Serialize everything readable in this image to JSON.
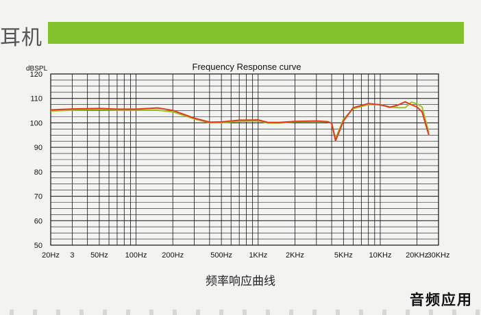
{
  "header": {
    "title": "耳机",
    "bar_color": "#82c22a"
  },
  "caption": "频率响应曲线",
  "brand_label": "音频应用",
  "chart_data": {
    "type": "line",
    "title": "Frequency Response curve",
    "ylabel": "dBSPL",
    "xlabel": "",
    "x_scale": "log",
    "xlim": [
      20,
      30000
    ],
    "ylim": [
      50,
      120
    ],
    "grid": true,
    "y_ticks": [
      {
        "value": 120,
        "label": "120"
      },
      {
        "value": 110,
        "label": "110"
      },
      {
        "value": 100,
        "label": "100"
      },
      {
        "value": 90,
        "label": "90"
      },
      {
        "value": 80,
        "label": "80"
      },
      {
        "value": 70,
        "label": "70"
      },
      {
        "value": 60,
        "label": "60"
      },
      {
        "value": 50,
        "label": "50"
      }
    ],
    "x_ticks": [
      {
        "value": 20,
        "label": "20Hz"
      },
      {
        "value": 30,
        "label": "3"
      },
      {
        "value": 50,
        "label": "50Hz"
      },
      {
        "value": 100,
        "label": "100Hz"
      },
      {
        "value": 200,
        "label": "200Hz"
      },
      {
        "value": 500,
        "label": "500Hz"
      },
      {
        "value": 1000,
        "label": "1KHz"
      },
      {
        "value": 2000,
        "label": "2KHz"
      },
      {
        "value": 5000,
        "label": "5KHz"
      },
      {
        "value": 10000,
        "label": "10KHz"
      },
      {
        "value": 20000,
        "label": "20KHz"
      },
      {
        "value": 30000,
        "label": "30KHz"
      }
    ],
    "series": [
      {
        "color": "#9cc424",
        "x": [
          20,
          30,
          50,
          70,
          100,
          150,
          200,
          300,
          400,
          500,
          700,
          1000,
          1200,
          1500,
          2000,
          3000,
          3700,
          4000,
          4300,
          5000,
          6000,
          8000,
          10000,
          12000,
          14000,
          16000,
          18000,
          20000,
          22000,
          25000
        ],
        "y": [
          104.8,
          105.2,
          105.4,
          105.2,
          105.2,
          105.2,
          104.5,
          101.6,
          100,
          100,
          100.6,
          100.8,
          99.9,
          99.9,
          100.4,
          100.6,
          100.4,
          99.8,
          93.5,
          101.5,
          105.8,
          107.5,
          107.5,
          106.5,
          106.2,
          106.2,
          108.5,
          107.8,
          106.5,
          96
        ]
      },
      {
        "color": "#e2381f",
        "x": [
          20,
          30,
          50,
          70,
          100,
          150,
          200,
          300,
          400,
          500,
          700,
          1000,
          1200,
          1500,
          2000,
          3000,
          3700,
          4000,
          4300,
          5000,
          6000,
          8000,
          10000,
          12000,
          14000,
          16000,
          18000,
          20000,
          22000,
          25000
        ],
        "y": [
          105.3,
          105.7,
          105.9,
          105.6,
          105.6,
          106.1,
          105.1,
          101.9,
          100.3,
          100.4,
          101.1,
          101.2,
          100.2,
          100.2,
          100.6,
          100.8,
          100.5,
          99.8,
          92.7,
          100.8,
          106.2,
          107.9,
          107.4,
          106.4,
          107.3,
          108.6,
          107.4,
          106.5,
          104.5,
          95
        ]
      }
    ]
  }
}
